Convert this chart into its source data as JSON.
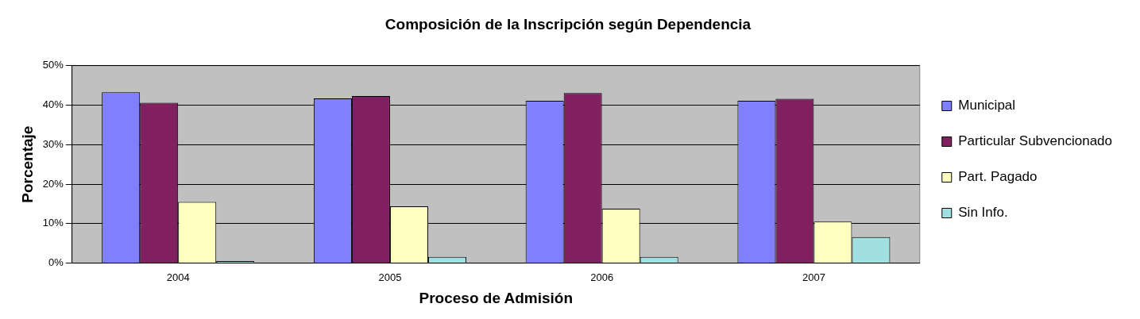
{
  "chart_data": {
    "type": "bar",
    "title": "Composición de la Inscripción según Dependencia",
    "xlabel": "Proceso de Admisión",
    "ylabel": "Porcentaje",
    "categories": [
      "2004",
      "2005",
      "2006",
      "2007"
    ],
    "series": [
      {
        "name": "Municipal",
        "color": "#8080ff",
        "values": [
          43.3,
          41.7,
          41.1,
          41.1
        ]
      },
      {
        "name": "Particular Subvencionado",
        "color": "#802060",
        "values": [
          40.6,
          42.3,
          43.1,
          41.6
        ]
      },
      {
        "name": "Part. Pagado",
        "color": "#ffffc0",
        "values": [
          15.5,
          14.4,
          13.8,
          10.5
        ]
      },
      {
        "name": "Sin Info.",
        "color": "#a0e0e0",
        "values": [
          0.5,
          1.6,
          1.6,
          6.6
        ]
      }
    ],
    "ylim": [
      0,
      50
    ],
    "yticks": [
      {
        "value": 0,
        "label": "0%"
      },
      {
        "value": 10,
        "label": "10%"
      },
      {
        "value": 20,
        "label": "20%"
      },
      {
        "value": 30,
        "label": "30%"
      },
      {
        "value": 40,
        "label": "40%"
      },
      {
        "value": 50,
        "label": "50%"
      }
    ],
    "grid": "y",
    "legend": "right"
  }
}
